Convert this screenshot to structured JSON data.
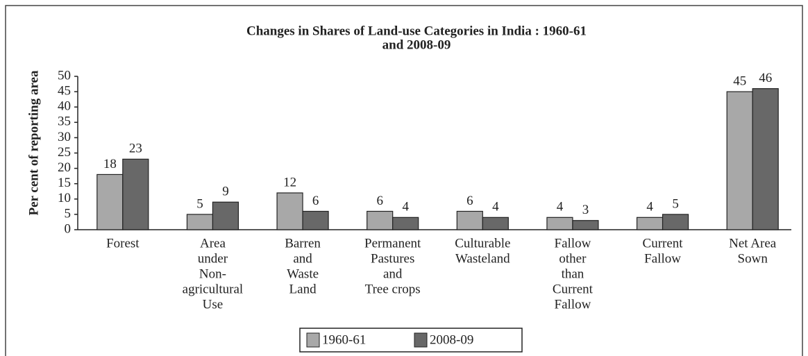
{
  "chart_data": {
    "type": "bar",
    "title": [
      "Changes in Shares of Land-use Categories in India : 1960-61",
      "and 2008-09"
    ],
    "y_label": "Per cent of reporting area",
    "categories": [
      [
        "Forest"
      ],
      [
        "Area",
        "under",
        "Non-",
        "agricultural",
        "Use"
      ],
      [
        "Barren",
        "and",
        "Waste",
        "Land"
      ],
      [
        "Permanent",
        "Pastures",
        "and",
        "Tree crops"
      ],
      [
        "Culturable",
        "Wasteland"
      ],
      [
        "Fallow",
        "other",
        "than",
        "Current",
        "Fallow"
      ],
      [
        "Current",
        "Fallow"
      ],
      [
        "Net Area",
        "Sown"
      ]
    ],
    "series": [
      {
        "name": "1960-61",
        "color": "#a8a8a8",
        "values": [
          18,
          5,
          12,
          6,
          6,
          4,
          4,
          45
        ]
      },
      {
        "name": "2008-09",
        "color": "#686868",
        "values": [
          23,
          9,
          6,
          4,
          4,
          3,
          5,
          46
        ]
      }
    ],
    "ylim": [
      0,
      50
    ],
    "yticks": [
      0,
      5,
      10,
      15,
      20,
      25,
      30,
      35,
      40,
      45,
      50
    ],
    "grid": false,
    "legend": "bottom"
  }
}
